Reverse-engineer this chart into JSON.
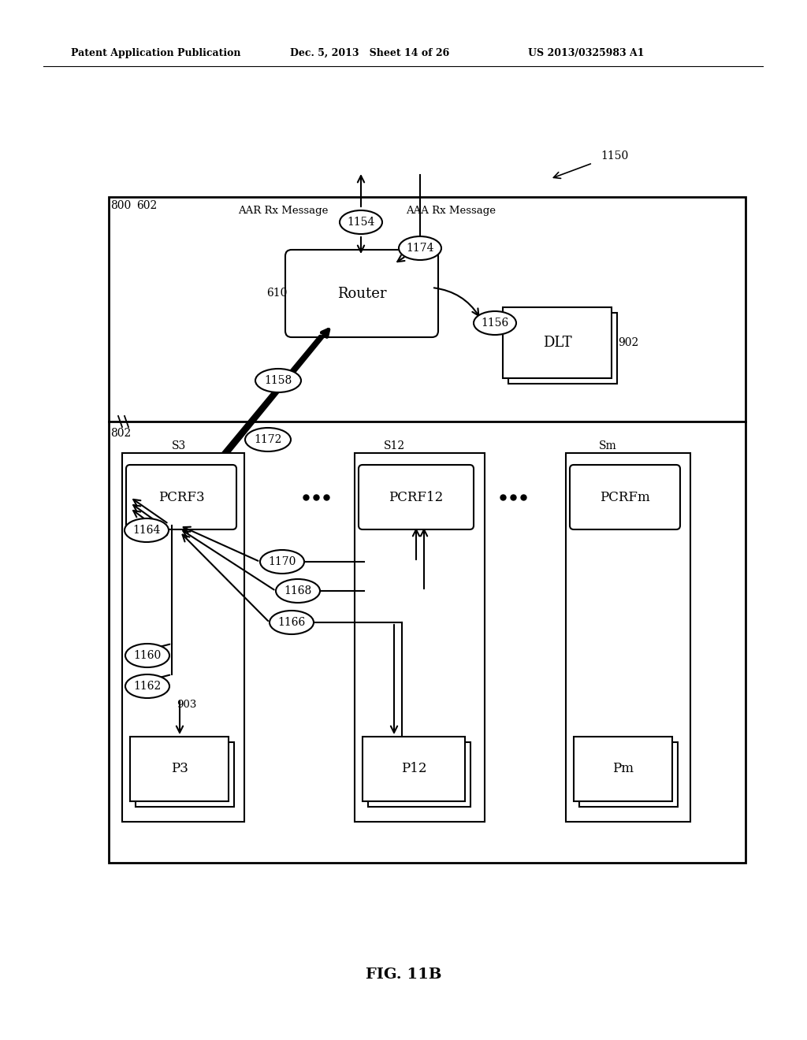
{
  "bg_color": "#ffffff",
  "header_left": "Patent Application Publication",
  "header_mid": "Dec. 5, 2013   Sheet 14 of 26",
  "header_right": "US 2013/0325983 A1",
  "fig_label": "FIG. 11B"
}
